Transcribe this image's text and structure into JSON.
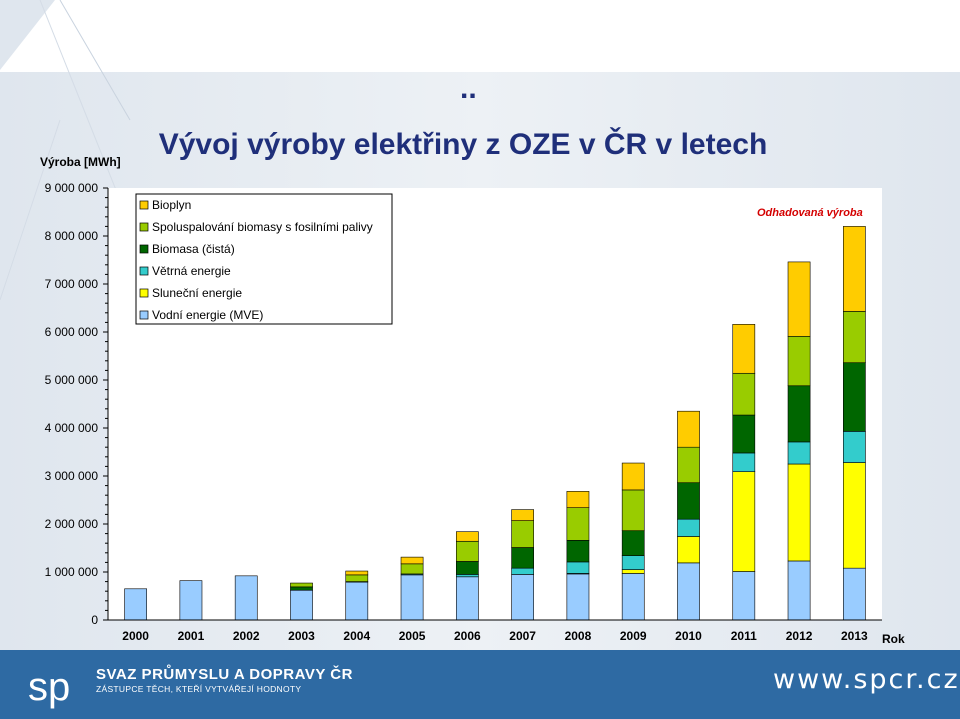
{
  "slide": {
    "title": "Vývoj výroby elektřiny z OZE v ČR v letech",
    "title_dots": "..",
    "note": "Odhadovaná výroba"
  },
  "footer": {
    "org_name": "SVAZ PRŮMYSLU A DOPRAVY ČR",
    "org_tagline": "ZÁSTUPCE TĚCH, KTEŘÍ VYTVÁŘEJÍ HODNOTY",
    "website": "www.spcr.cz",
    "logo_text": "sp"
  },
  "colors": {
    "footer_bg": "#2e6aa3",
    "title": "#1f2f7a",
    "note": "#d40000"
  },
  "chart_data": {
    "type": "bar",
    "stacked": true,
    "title": "Vývoj výroby elektřiny z OZE v ČR v letech",
    "ylabel": "Výroba [MWh]",
    "xlabel": "Rok",
    "ylim": [
      0,
      9000000
    ],
    "yticks": [
      "0",
      "1 000 000",
      "2 000 000",
      "3 000 000",
      "4 000 000",
      "5 000 000",
      "6 000 000",
      "7 000 000",
      "8 000 000",
      "9 000 000"
    ],
    "categories": [
      "2000",
      "2001",
      "2002",
      "2003",
      "2004",
      "2005",
      "2006",
      "2007",
      "2008",
      "2009",
      "2010",
      "2011",
      "2012",
      "2013"
    ],
    "legend_position": "top-left",
    "series": [
      {
        "name": "Vodní energie (MVE)",
        "color": "#99ccff",
        "values": [
          650000,
          820000,
          920000,
          620000,
          790000,
          940000,
          900000,
          950000,
          960000,
          970000,
          1190000,
          1010000,
          1230000,
          1080000
        ]
      },
      {
        "name": "Sluneční energie",
        "color": "#ffff00",
        "values": [
          0,
          0,
          0,
          0,
          0,
          0,
          0,
          0,
          10000,
          80000,
          550000,
          2080000,
          2020000,
          2200000
        ]
      },
      {
        "name": "Větrná energie",
        "color": "#33cccc",
        "values": [
          0,
          0,
          0,
          0,
          10000,
          20000,
          50000,
          130000,
          240000,
          290000,
          360000,
          390000,
          460000,
          650000
        ]
      },
      {
        "name": "Biomasa (čistá)",
        "color": "#006600",
        "values": [
          0,
          0,
          0,
          70000,
          0,
          0,
          270000,
          430000,
          450000,
          520000,
          760000,
          790000,
          1170000,
          1430000
        ]
      },
      {
        "name": "Spoluspalování biomasy s fosilními palivy",
        "color": "#99cc00",
        "values": [
          0,
          0,
          0,
          80000,
          140000,
          210000,
          420000,
          560000,
          680000,
          850000,
          740000,
          870000,
          1030000,
          1070000
        ]
      },
      {
        "name": "Bioplyn",
        "color": "#ffcc00",
        "values": [
          0,
          0,
          0,
          0,
          80000,
          140000,
          200000,
          230000,
          340000,
          560000,
          750000,
          1020000,
          1550000,
          1770000
        ]
      }
    ]
  }
}
